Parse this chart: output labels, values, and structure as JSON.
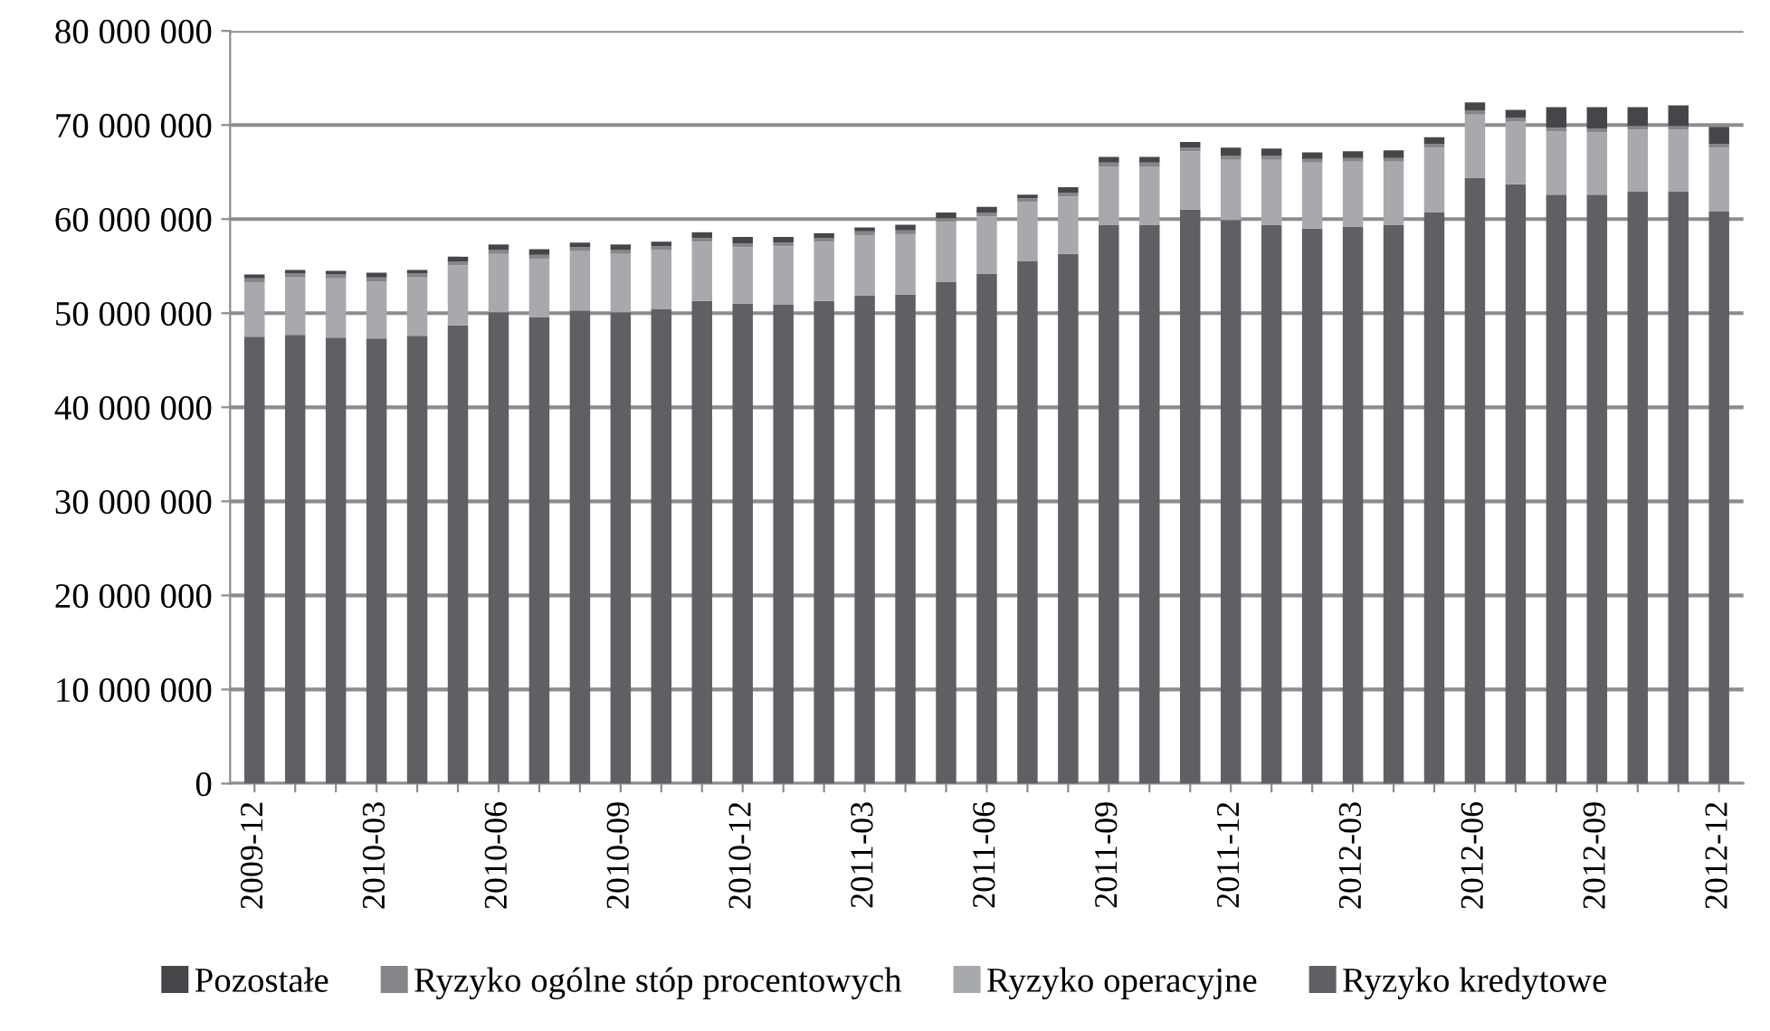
{
  "chart_data": {
    "type": "bar",
    "stacked": true,
    "categories": [
      "2009-12",
      null,
      null,
      "2010-03",
      null,
      null,
      "2010-06",
      null,
      null,
      "2010-09",
      null,
      null,
      "2010-12",
      null,
      null,
      "2011-03",
      null,
      null,
      "2011-06",
      null,
      null,
      "2011-09",
      null,
      null,
      "2011-12",
      null,
      null,
      "2012-03",
      null,
      null,
      "2012-06",
      null,
      null,
      "2012-09",
      null,
      null,
      "2012-12"
    ],
    "series": [
      {
        "name": "Ryzyko kredytowe",
        "color": "#5f6064",
        "values": [
          47500000,
          47700000,
          47400000,
          47300000,
          47600000,
          48700000,
          50100000,
          49600000,
          50300000,
          50100000,
          50400000,
          51300000,
          51000000,
          50900000,
          51300000,
          51900000,
          52000000,
          53300000,
          54200000,
          55500000,
          56300000,
          59400000,
          59400000,
          61000000,
          59900000,
          59400000,
          59000000,
          59200000,
          59400000,
          60700000,
          64400000,
          63700000,
          62600000,
          62600000,
          62900000,
          62900000,
          60800000
        ]
      },
      {
        "name": "Ryzyko operacyjne",
        "color": "#a7a9ac",
        "values": [
          5800000,
          6100000,
          6300000,
          6100000,
          6200000,
          6400000,
          6200000,
          6200000,
          6300000,
          6200000,
          6300000,
          6300000,
          6000000,
          6200000,
          6300000,
          6400000,
          6400000,
          6400000,
          6100000,
          6300000,
          6100000,
          6200000,
          6200000,
          6200000,
          6400000,
          6900000,
          7000000,
          6900000,
          6700000,
          6900000,
          6700000,
          6700000,
          6700000,
          6600000,
          6600000,
          6600000,
          6800000
        ]
      },
      {
        "name": "Ryzyko ogólne stóp procentowych",
        "color": "#85868a",
        "values": [
          400000,
          400000,
          400000,
          400000,
          400000,
          400000,
          400000,
          400000,
          400000,
          400000,
          400000,
          400000,
          400000,
          400000,
          400000,
          400000,
          400000,
          400000,
          400000,
          400000,
          400000,
          400000,
          400000,
          400000,
          400000,
          400000,
          400000,
          400000,
          400000,
          400000,
          400000,
          400000,
          400000,
          400000,
          400000,
          400000,
          400000
        ]
      },
      {
        "name": "Pozostałe",
        "color": "#45464a",
        "values": [
          400000,
          400000,
          400000,
          500000,
          400000,
          500000,
          600000,
          600000,
          500000,
          600000,
          500000,
          600000,
          700000,
          600000,
          500000,
          400000,
          600000,
          600000,
          600000,
          400000,
          600000,
          600000,
          600000,
          600000,
          900000,
          800000,
          700000,
          700000,
          800000,
          700000,
          900000,
          800000,
          2200000,
          2300000,
          2000000,
          2200000,
          1800000
        ]
      }
    ],
    "ylim": [
      0,
      80000000
    ],
    "yticks": [
      0,
      {
        "value": 10000000,
        "label": "10 000 000"
      },
      {
        "value": 20000000,
        "label": "20 000 000"
      },
      {
        "value": 30000000,
        "label": "30 000 000"
      },
      {
        "value": 40000000,
        "label": "40 000 000"
      },
      {
        "value": 50000000,
        "label": "50 000 000"
      },
      {
        "value": 60000000,
        "label": "60 000 000"
      },
      {
        "value": 70000000,
        "label": "70 000 000"
      },
      {
        "value": 80000000,
        "label": "80 000 000"
      }
    ],
    "grid": "y",
    "legend": "bottom"
  }
}
